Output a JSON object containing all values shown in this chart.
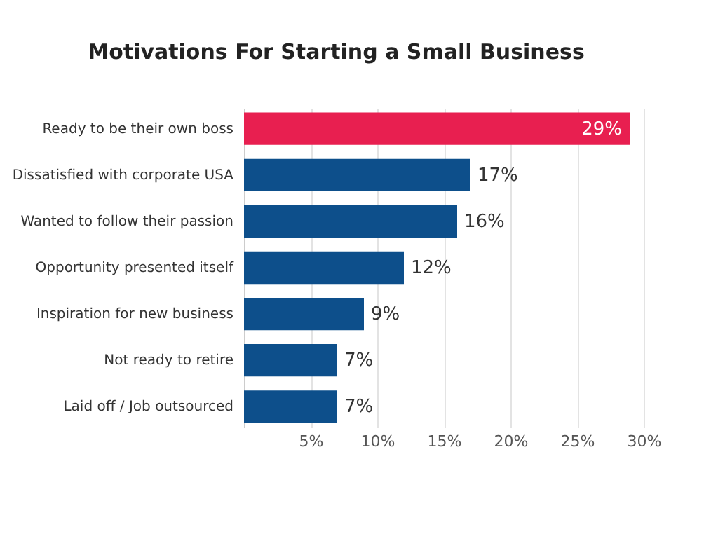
{
  "chart_data": {
    "type": "bar",
    "orientation": "horizontal",
    "title": "Motivations For Starting a Small Business",
    "categories": [
      "Ready to be their own boss",
      "Dissatisfied with corporate USA",
      "Wanted to follow their passion",
      "Opportunity presented itself",
      "Inspiration for new business",
      "Not ready to retire",
      "Laid off / Job outsourced"
    ],
    "values": [
      29,
      17,
      16,
      12,
      9,
      7,
      7
    ],
    "colors": [
      "#e81f50",
      "#0d4f8b",
      "#0d4f8b",
      "#0d4f8b",
      "#0d4f8b",
      "#0d4f8b",
      "#0d4f8b"
    ],
    "value_labels": [
      "29%",
      "17%",
      "16%",
      "12%",
      "9%",
      "7%",
      "7%"
    ],
    "xlim": [
      0,
      30
    ],
    "xticks": [
      {
        "value": 5,
        "label": "5%"
      },
      {
        "value": 10,
        "label": "10%"
      },
      {
        "value": 15,
        "label": "15%"
      },
      {
        "value": 20,
        "label": "20%"
      },
      {
        "value": 25,
        "label": "25%"
      },
      {
        "value": 30,
        "label": "30%"
      }
    ],
    "grid": "x"
  }
}
